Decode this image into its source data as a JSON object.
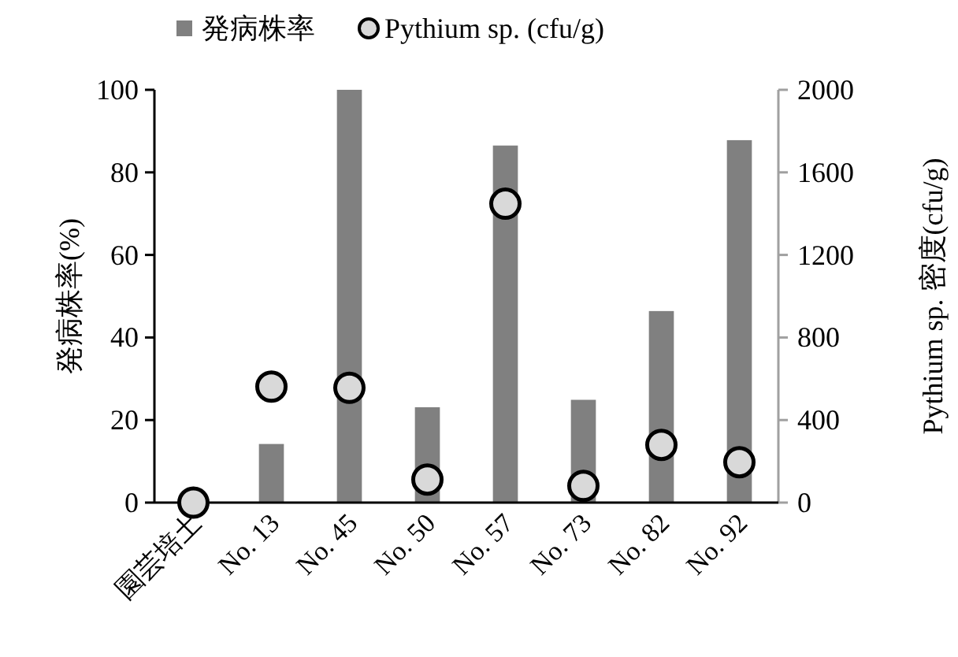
{
  "chart_data": {
    "type": "bar",
    "categories": [
      "園芸培土",
      "No. 13",
      "No. 45",
      "No. 50",
      "No. 57",
      "No. 73",
      "No. 82",
      "No. 92"
    ],
    "series": [
      {
        "name": "発病株率",
        "color": "#808080",
        "values": [
          0,
          14.2,
          100,
          23.1,
          86.5,
          24.9,
          46.4,
          87.8
        ]
      },
      {
        "name": "Pythium sp. (cfu/g)",
        "type": "scatter",
        "axis": "y2",
        "color": "#d9d9d9",
        "marker": "circle",
        "values": [
          0,
          562,
          556,
          112,
          1448,
          81,
          280,
          196
        ]
      }
    ],
    "ylabel": "発病株率(%)",
    "y2label": "Pythium sp. 密度(cfu/g)",
    "ylim": [
      0,
      100
    ],
    "yticks": [
      0,
      20,
      40,
      60,
      80,
      100
    ],
    "y2lim": [
      0,
      2000
    ],
    "y2ticks": [
      0,
      400,
      800,
      1200,
      1600,
      2000
    ],
    "legend": "top",
    "grid": false
  }
}
